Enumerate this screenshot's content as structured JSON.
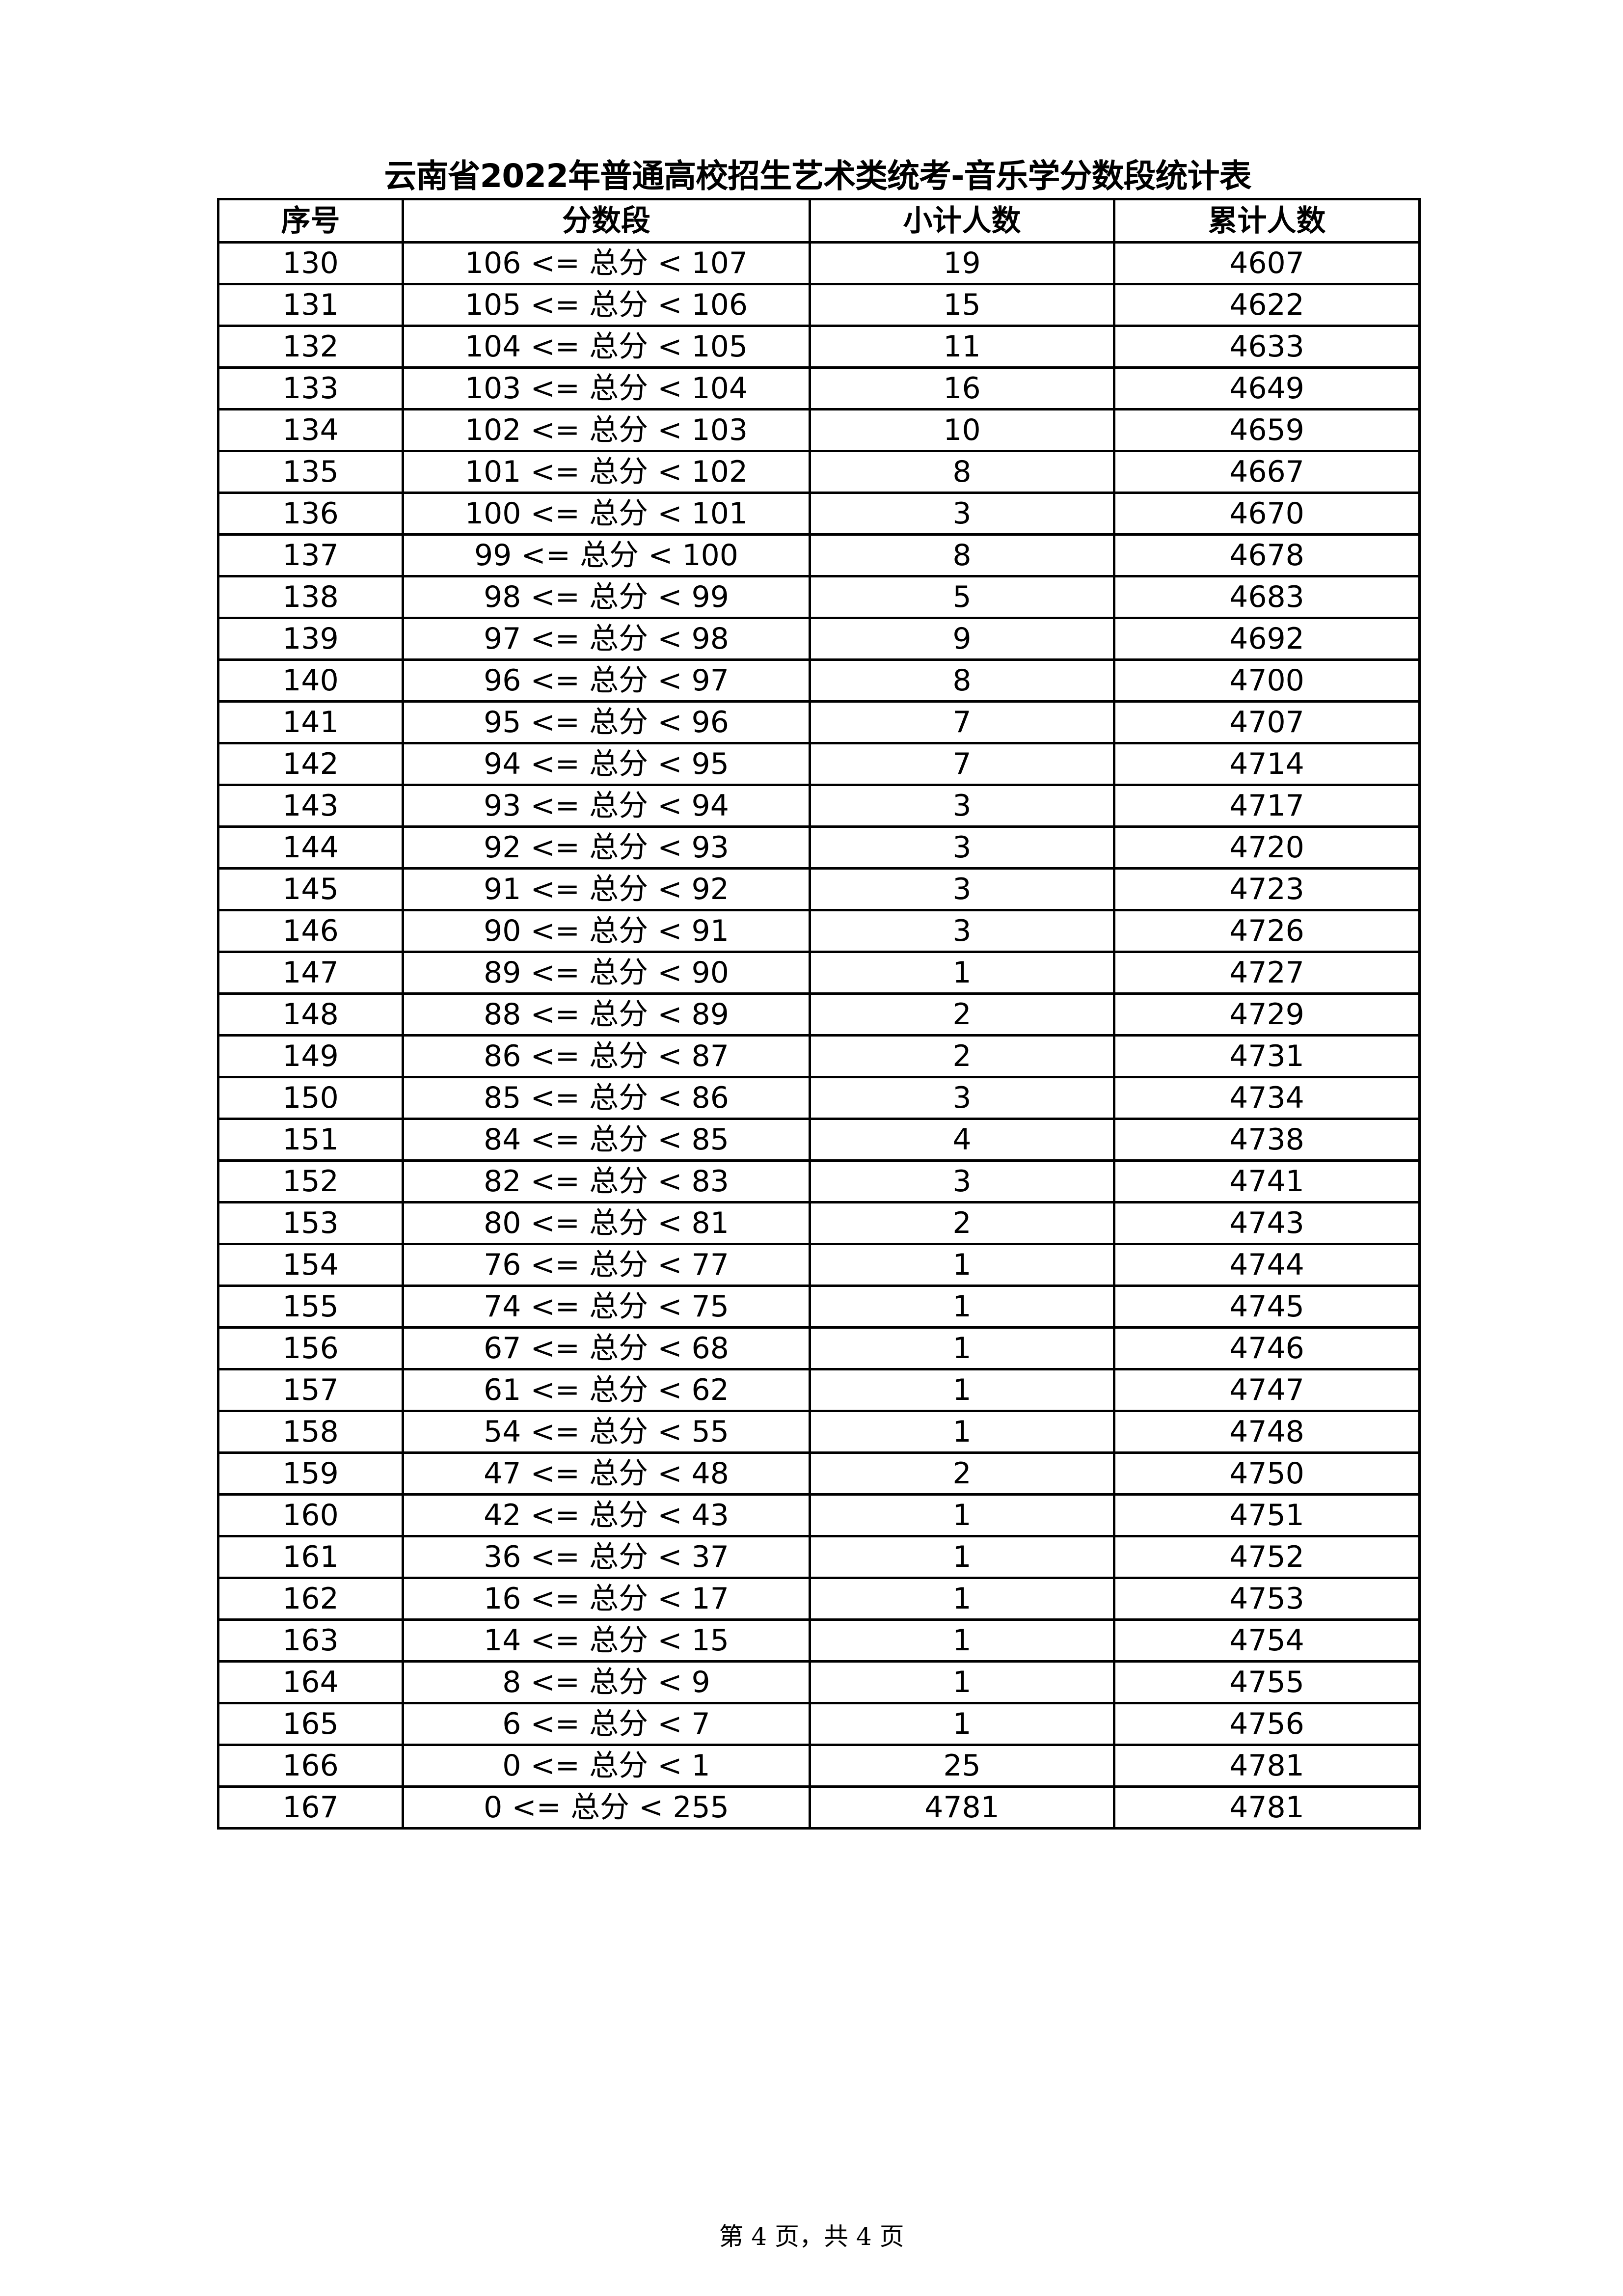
{
  "title": "云南省2022年普通高校招生艺术类统考-音乐学分数段统计表",
  "headers": [
    "序号",
    "分数段",
    "小计人数",
    "累计人数"
  ],
  "rows": [
    [
      "130",
      "106 <= 总分 < 107",
      "19",
      "4607"
    ],
    [
      "131",
      "105 <= 总分 < 106",
      "15",
      "4622"
    ],
    [
      "132",
      "104 <= 总分 < 105",
      "11",
      "4633"
    ],
    [
      "133",
      "103 <= 总分 < 104",
      "16",
      "4649"
    ],
    [
      "134",
      "102 <= 总分 < 103",
      "10",
      "4659"
    ],
    [
      "135",
      "101 <= 总分 < 102",
      "8",
      "4667"
    ],
    [
      "136",
      "100 <= 总分 < 101",
      "3",
      "4670"
    ],
    [
      "137",
      "99 <= 总分 < 100",
      "8",
      "4678"
    ],
    [
      "138",
      "98 <= 总分 < 99",
      "5",
      "4683"
    ],
    [
      "139",
      "97 <= 总分 < 98",
      "9",
      "4692"
    ],
    [
      "140",
      "96 <= 总分 < 97",
      "8",
      "4700"
    ],
    [
      "141",
      "95 <= 总分 < 96",
      "7",
      "4707"
    ],
    [
      "142",
      "94 <= 总分 < 95",
      "7",
      "4714"
    ],
    [
      "143",
      "93 <= 总分 < 94",
      "3",
      "4717"
    ],
    [
      "144",
      "92 <= 总分 < 93",
      "3",
      "4720"
    ],
    [
      "145",
      "91 <= 总分 < 92",
      "3",
      "4723"
    ],
    [
      "146",
      "90 <= 总分 < 91",
      "3",
      "4726"
    ],
    [
      "147",
      "89 <= 总分 < 90",
      "1",
      "4727"
    ],
    [
      "148",
      "88 <= 总分 < 89",
      "2",
      "4729"
    ],
    [
      "149",
      "86 <= 总分 < 87",
      "2",
      "4731"
    ],
    [
      "150",
      "85 <= 总分 < 86",
      "3",
      "4734"
    ],
    [
      "151",
      "84 <= 总分 < 85",
      "4",
      "4738"
    ],
    [
      "152",
      "82 <= 总分 < 83",
      "3",
      "4741"
    ],
    [
      "153",
      "80 <= 总分 < 81",
      "2",
      "4743"
    ],
    [
      "154",
      "76 <= 总分 < 77",
      "1",
      "4744"
    ],
    [
      "155",
      "74 <= 总分 < 75",
      "1",
      "4745"
    ],
    [
      "156",
      "67 <= 总分 < 68",
      "1",
      "4746"
    ],
    [
      "157",
      "61 <= 总分 < 62",
      "1",
      "4747"
    ],
    [
      "158",
      "54 <= 总分 < 55",
      "1",
      "4748"
    ],
    [
      "159",
      "47 <= 总分 < 48",
      "2",
      "4750"
    ],
    [
      "160",
      "42 <= 总分 < 43",
      "1",
      "4751"
    ],
    [
      "161",
      "36 <= 总分 < 37",
      "1",
      "4752"
    ],
    [
      "162",
      "16 <= 总分 < 17",
      "1",
      "4753"
    ],
    [
      "163",
      "14 <= 总分 < 15",
      "1",
      "4754"
    ],
    [
      "164",
      "8 <= 总分 < 9",
      "1",
      "4755"
    ],
    [
      "165",
      "6 <= 总分 < 7",
      "1",
      "4756"
    ],
    [
      "166",
      "0 <= 总分 < 1",
      "25",
      "4781"
    ],
    [
      "167",
      "0 <= 总分 < 255",
      "4781",
      "4781"
    ]
  ],
  "footer": "第 4 页，共 4 页"
}
